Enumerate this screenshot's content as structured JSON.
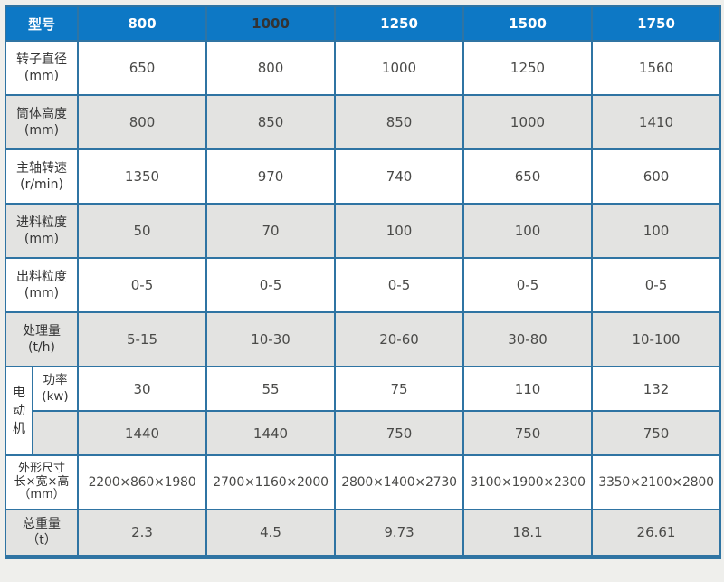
{
  "colors": {
    "header_bg": "#0d78c5",
    "header_text": "#ffffff",
    "header_text_dark": "#333333",
    "border": "#2f74a3",
    "row_alt_bg": "#e3e3e1",
    "row_bg": "#ffffff",
    "page_bg": "#efefec",
    "label_text": "#333333",
    "value_text": "#4a4a48"
  },
  "table": {
    "header": {
      "label": "型号",
      "models": [
        "800",
        "1000",
        "1250",
        "1500",
        "1750"
      ]
    },
    "rows": [
      {
        "label": "转子直径",
        "unit": "(mm)",
        "values": [
          "650",
          "800",
          "1000",
          "1250",
          "1560"
        ]
      },
      {
        "label": "筒体高度",
        "unit": "(mm)",
        "values": [
          "800",
          "850",
          "850",
          "1000",
          "1410"
        ]
      },
      {
        "label": "主轴转速",
        "unit": "(r/min)",
        "values": [
          "1350",
          "970",
          "740",
          "650",
          "600"
        ]
      },
      {
        "label": "进料粒度",
        "unit": "(mm)",
        "values": [
          "50",
          "70",
          "100",
          "100",
          "100"
        ]
      },
      {
        "label": "出料粒度",
        "unit": "(mm)",
        "values": [
          "0-5",
          "0-5",
          "0-5",
          "0-5",
          "0-5"
        ]
      },
      {
        "label": "处理量",
        "unit": "(t/h)",
        "values": [
          "5-15",
          "10-30",
          "20-60",
          "30-80",
          "10-100"
        ]
      }
    ],
    "motor": {
      "label": "电动机",
      "power_label": "功率",
      "power_unit": "(kw)",
      "power_values": [
        "30",
        "55",
        "75",
        "110",
        "132"
      ],
      "speed_label": "",
      "speed_values": [
        "1440",
        "1440",
        "750",
        "750",
        "750"
      ]
    },
    "dimensions": {
      "label": "外形尺寸",
      "sub": "长×宽×高",
      "unit": "（mm）",
      "values": [
        "2200×860×1980",
        "2700×1160×2000",
        "2800×1400×2730",
        "3100×1900×2300",
        "3350×2100×2800"
      ]
    },
    "weight": {
      "label": "总重量",
      "unit": "（t）",
      "values": [
        "2.3",
        "4.5",
        "9.73",
        "18.1",
        "26.61"
      ]
    }
  }
}
